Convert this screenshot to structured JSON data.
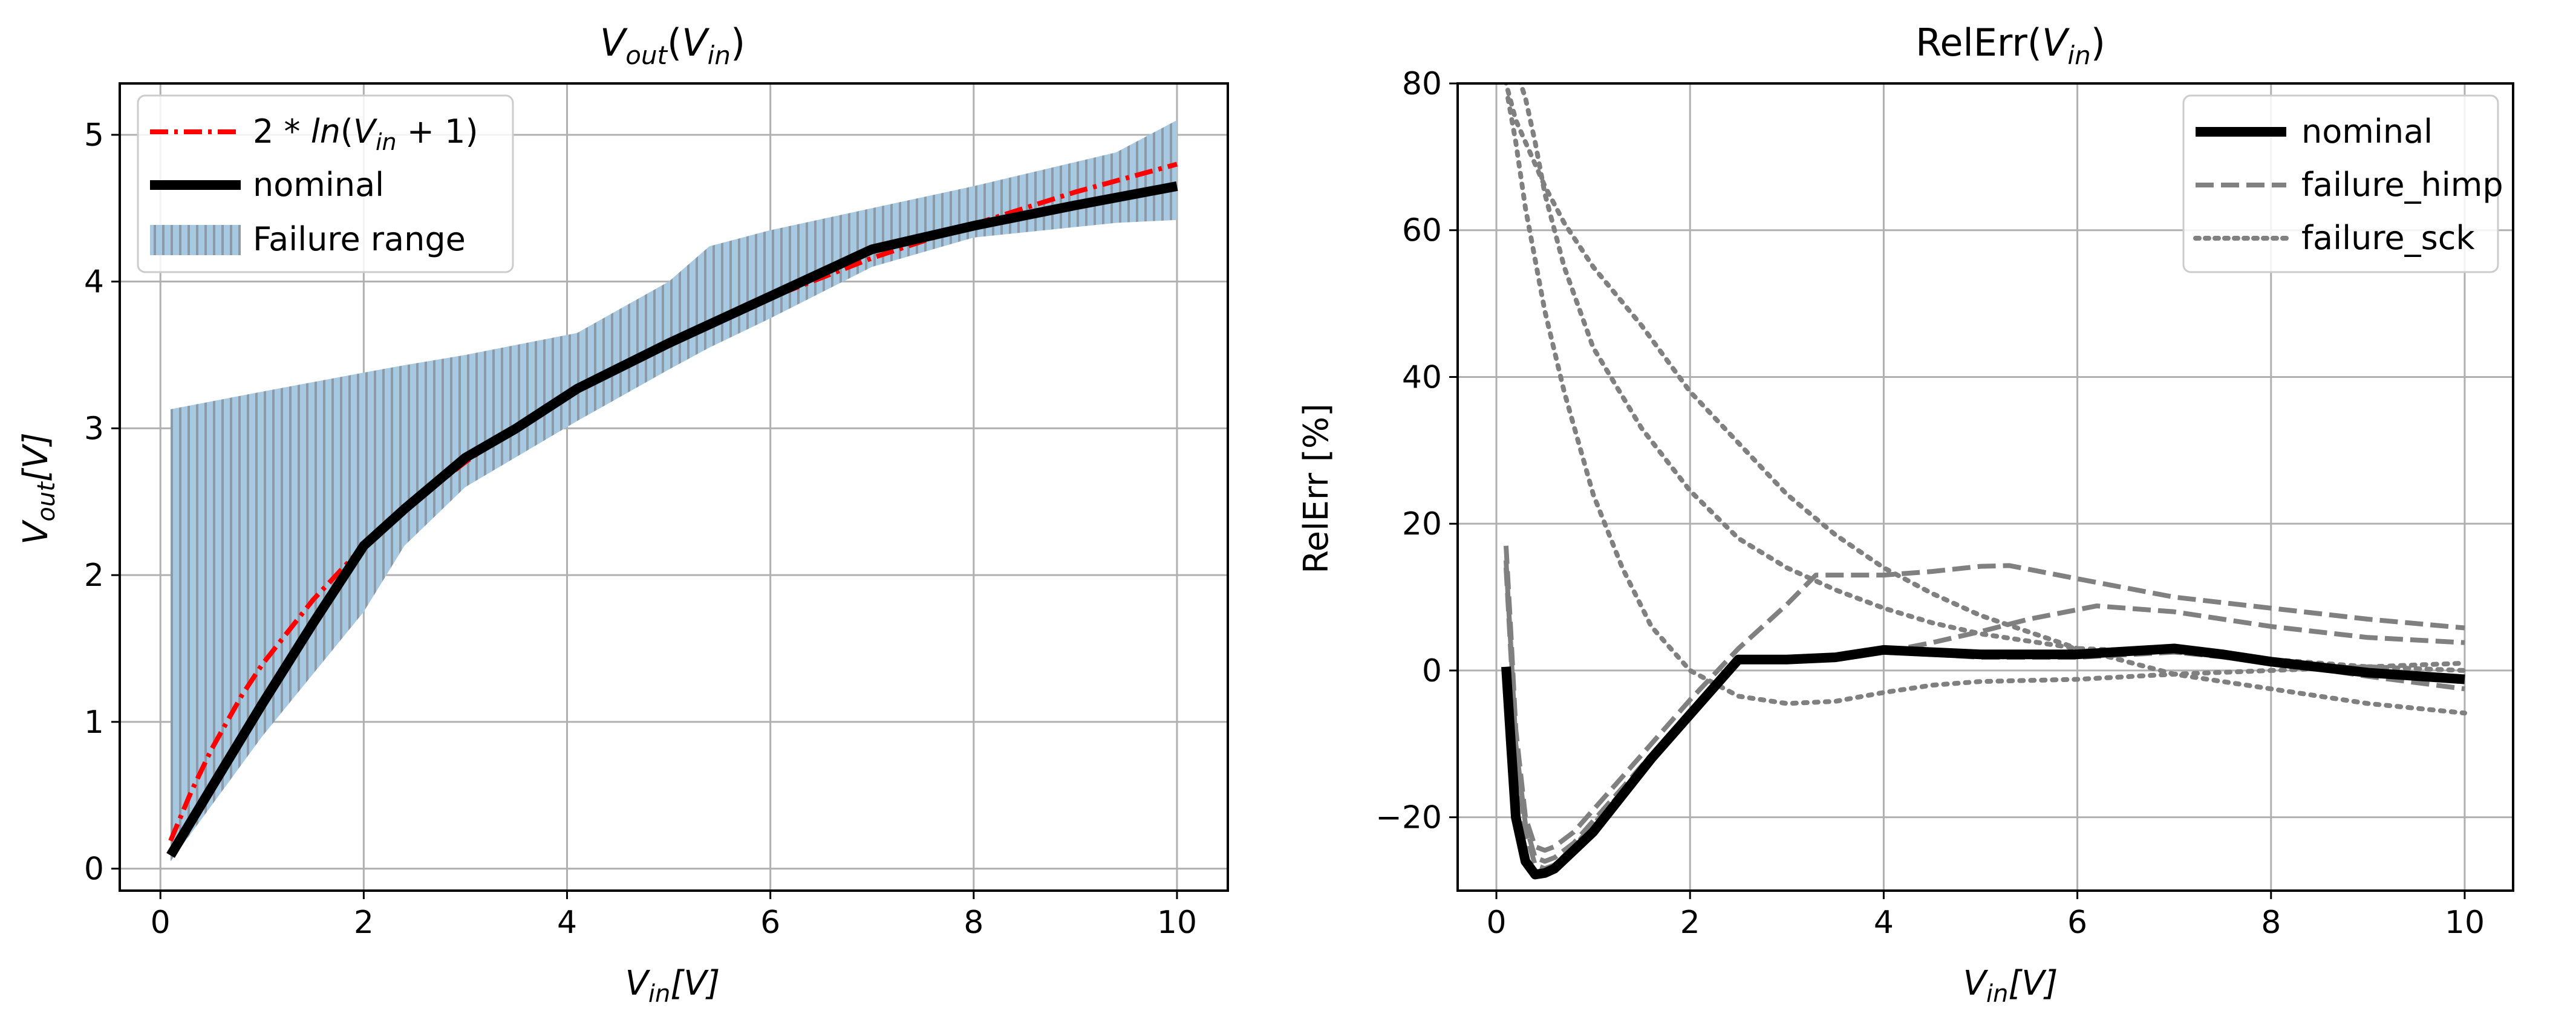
{
  "chart_data": [
    {
      "type": "line",
      "title": "V_out(V_in)",
      "title_parts": {
        "main": "V",
        "sub": "out",
        "paren_open": "(",
        "arg": "V",
        "arg_sub": "in",
        "paren_close": ")"
      },
      "xlabel_parts": {
        "main": "V",
        "sub": "in",
        "rest": "[V]"
      },
      "ylabel_parts": {
        "main": "V",
        "sub": "out",
        "rest": "[V]"
      },
      "xlim": [
        -0.4,
        10.5
      ],
      "ylim": [
        -0.15,
        5.35
      ],
      "xticks": [
        0,
        2,
        4,
        6,
        8,
        10
      ],
      "yticks": [
        0,
        1,
        2,
        3,
        4,
        5
      ],
      "grid": true,
      "legend_position": "top-left",
      "legend": {
        "ref_label": "2 * ln(V_in + 1)",
        "ref_label_parts": {
          "pre": "2 * ",
          "fn": "ln",
          "open": "(",
          "v": "V",
          "sub": "in",
          "post": " + 1)"
        },
        "nominal_label": "nominal",
        "band_label": "Failure range"
      },
      "colors": {
        "reference": "#ff0000",
        "nominal": "#000000",
        "band_fill": "#a6c8e0",
        "band_hatch": "#8c9aa8"
      },
      "series": [
        {
          "name": "2*ln(Vin+1)",
          "style": "dashdot",
          "color": "#ff0000",
          "x": [
            0.1,
            0.3,
            0.5,
            0.8,
            1.0,
            1.5,
            2.0,
            2.5,
            3.0,
            3.5,
            4.0,
            4.5,
            5.0,
            6.0,
            7.0,
            8.0,
            9.0,
            10.0
          ],
          "y": [
            0.19,
            0.52,
            0.81,
            1.18,
            1.39,
            1.83,
            2.2,
            2.5,
            2.77,
            3.01,
            3.22,
            3.41,
            3.58,
            3.89,
            4.16,
            4.39,
            4.61,
            4.8
          ]
        },
        {
          "name": "nominal",
          "style": "solid",
          "color": "#000000",
          "x": [
            0.1,
            0.5,
            1.0,
            1.5,
            2.0,
            2.4,
            3.0,
            3.5,
            4.1,
            5.0,
            6.0,
            7.0,
            8.0,
            9.0,
            10.0
          ],
          "y": [
            0.09,
            0.55,
            1.12,
            1.67,
            2.2,
            2.45,
            2.8,
            3.0,
            3.27,
            3.58,
            3.9,
            4.22,
            4.38,
            4.52,
            4.65
          ]
        }
      ],
      "band": {
        "x": [
          0.1,
          1.0,
          2.0,
          2.4,
          3.0,
          4.1,
          5.0,
          5.4,
          6.0,
          7.0,
          8.0,
          9.4,
          10.0
        ],
        "upper": [
          3.13,
          3.25,
          3.38,
          3.43,
          3.5,
          3.65,
          4.0,
          4.24,
          4.35,
          4.5,
          4.65,
          4.88,
          5.1
        ],
        "lower": [
          0.05,
          0.9,
          1.75,
          2.2,
          2.6,
          3.05,
          3.4,
          3.55,
          3.75,
          4.1,
          4.3,
          4.4,
          4.42
        ]
      }
    },
    {
      "type": "line",
      "title": "RelErr(V_in)",
      "title_parts": {
        "main": "RelErr(",
        "arg": "V",
        "arg_sub": "in",
        "paren_close": ")"
      },
      "xlabel_parts": {
        "main": "V",
        "sub": "in",
        "rest": "[V]"
      },
      "ylabel": "RelErr [%]",
      "xlim": [
        -0.4,
        10.5
      ],
      "ylim": [
        -30,
        80
      ],
      "xticks": [
        0,
        2,
        4,
        6,
        8,
        10
      ],
      "yticks": [
        -20,
        0,
        20,
        40,
        60,
        80
      ],
      "grid": true,
      "legend_position": "top-right",
      "legend": {
        "nominal_label": "nominal",
        "himp_label": "failure_himp",
        "sck_label": "failure_sck"
      },
      "series": [
        {
          "name": "nominal",
          "style": "solid",
          "color": "#000000",
          "x": [
            0.1,
            0.15,
            0.2,
            0.3,
            0.4,
            0.5,
            0.6,
            0.8,
            1.0,
            1.3,
            1.6,
            2.0,
            2.5,
            3.0,
            3.5,
            4.0,
            4.5,
            5.0,
            6.0,
            7.0,
            7.5,
            8.0,
            9.0,
            10.0
          ],
          "y": [
            0.5,
            -10,
            -20,
            -26,
            -27.8,
            -27.6,
            -27,
            -24.5,
            -22,
            -17,
            -12,
            -6,
            1.5,
            1.5,
            1.8,
            2.8,
            2.5,
            2.2,
            2.2,
            3,
            2.2,
            1.2,
            -0.3,
            -1.2
          ]
        },
        {
          "name": "failure_himp",
          "style": "dashed",
          "color": "#808080",
          "x": [
            0.1,
            0.15,
            0.2,
            0.3,
            0.4,
            0.5,
            0.6,
            0.8,
            1.0,
            1.3,
            1.6,
            2.0,
            2.5,
            3.0,
            3.3,
            4.0,
            4.5,
            5.0,
            5.3,
            6.0,
            7.0,
            8.0,
            9.0,
            10.0
          ],
          "y": [
            17,
            5,
            -8,
            -20,
            -24,
            -24.5,
            -24,
            -22,
            -19,
            -14.5,
            -10,
            -4,
            3,
            9,
            13,
            13,
            13.5,
            14.2,
            14.3,
            12.5,
            10,
            8.5,
            7,
            5.8
          ]
        },
        {
          "name": "failure_himp",
          "style": "dashed",
          "color": "#808080",
          "x": [
            0.1,
            0.15,
            0.2,
            0.3,
            0.4,
            0.5,
            0.6,
            0.8,
            1.0,
            1.3,
            1.6,
            2.0,
            2.5,
            3.0,
            3.5,
            4.0,
            4.5,
            5.0,
            5.5,
            6.2,
            7.0,
            8.0,
            9.0,
            10.0
          ],
          "y": [
            15,
            3,
            -10,
            -21,
            -25.5,
            -26,
            -25.5,
            -23.5,
            -20.5,
            -16,
            -11.5,
            -5.5,
            1.5,
            1.5,
            1.8,
            2.5,
            3.8,
            5.3,
            7,
            8.8,
            8,
            6,
            4.5,
            3.8
          ]
        },
        {
          "name": "failure_himp",
          "style": "dashed",
          "color": "#808080",
          "x": [
            0.1,
            0.15,
            0.2,
            0.3,
            0.4,
            0.5,
            0.6,
            0.8,
            1.0,
            1.3,
            1.6,
            2.0,
            2.5,
            3.0,
            3.5,
            4.0,
            4.5,
            5.0,
            6.0,
            7.0,
            8.0,
            9.0,
            10.0
          ],
          "y": [
            14,
            2,
            -11,
            -22,
            -26.5,
            -27,
            -26.5,
            -24,
            -21,
            -16.5,
            -11.5,
            -5.5,
            1.2,
            1.3,
            1.6,
            2.5,
            2.2,
            1.8,
            1.8,
            2.5,
            1.2,
            -0.8,
            -2.5
          ]
        },
        {
          "name": "failure_sck",
          "style": "dotted",
          "color": "#808080",
          "x": [
            0.08,
            0.1,
            0.2,
            0.3,
            0.5,
            0.7,
            1.0,
            1.5,
            2.0,
            2.5,
            3.0,
            3.5,
            4.0,
            4.5,
            5.0,
            6.0,
            7.0,
            8.0,
            9.0,
            10.0
          ],
          "y": [
            82,
            80,
            75,
            72,
            66,
            61,
            55,
            47,
            38,
            31,
            24,
            18.5,
            14,
            10.5,
            7.5,
            3,
            -0.5,
            -2.5,
            -4.5,
            -5.8
          ]
        },
        {
          "name": "failure_sck",
          "style": "dotted",
          "color": "#808080",
          "x": [
            0.2,
            0.3,
            0.4,
            0.5,
            0.7,
            1.0,
            1.5,
            2.0,
            2.5,
            3.0,
            3.5,
            4.0,
            4.5,
            5.0,
            6.0,
            7.0,
            8.0,
            9.0,
            10.0
          ],
          "y": [
            82,
            78,
            72,
            65,
            55,
            44,
            33,
            24.5,
            18,
            14,
            11,
            8.5,
            6.5,
            5,
            3,
            2.5,
            1.5,
            0.5,
            0
          ]
        },
        {
          "name": "failure_sck",
          "style": "dotted",
          "color": "#808080",
          "x": [
            0.12,
            0.2,
            0.3,
            0.4,
            0.5,
            0.7,
            1.0,
            1.3,
            1.6,
            2.0,
            2.5,
            3.0,
            3.5,
            4.0,
            4.5,
            5.0,
            6.0,
            7.0,
            8.0,
            9.0,
            10.0
          ],
          "y": [
            78,
            72,
            63,
            56,
            49,
            38,
            24,
            14,
            6,
            0,
            -3.5,
            -4.5,
            -4.2,
            -3,
            -2,
            -1.5,
            -1.2,
            -0.5,
            0,
            0.5,
            1
          ]
        }
      ]
    }
  ]
}
